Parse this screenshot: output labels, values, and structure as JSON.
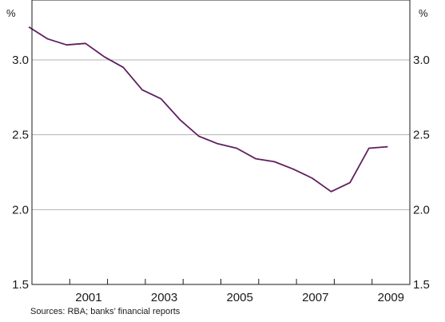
{
  "chart_data": {
    "type": "line",
    "title": "",
    "y_unit_label": "%",
    "ylim": [
      1.5,
      3.4
    ],
    "y_ticks": [
      1.5,
      2.0,
      2.5,
      3.0
    ],
    "y_tick_labels": [
      "1.5",
      "2.0",
      "2.5",
      "3.0"
    ],
    "x_tick_labels": [
      "2001",
      "2003",
      "2005",
      "2007",
      "2009"
    ],
    "grid": true,
    "series": [
      {
        "color": "#5e1f5e",
        "x": [
          "Dec-1999",
          "Jun-2000",
          "Dec-2000",
          "Jun-2001",
          "Dec-2001",
          "Jun-2002",
          "Dec-2002",
          "Jun-2003",
          "Dec-2003",
          "Jun-2004",
          "Dec-2004",
          "Jun-2005",
          "Dec-2005",
          "Jun-2006",
          "Dec-2006",
          "Jun-2007",
          "Dec-2007",
          "Jun-2008",
          "Dec-2008",
          "Jun-2009"
        ],
        "values": [
          3.22,
          3.14,
          3.1,
          3.11,
          3.02,
          2.95,
          2.8,
          2.74,
          2.6,
          2.49,
          2.44,
          2.41,
          2.34,
          2.32,
          2.27,
          2.21,
          2.12,
          2.18,
          2.41,
          2.42
        ]
      }
    ]
  },
  "source": "Sources: RBA; banks’ financial reports"
}
